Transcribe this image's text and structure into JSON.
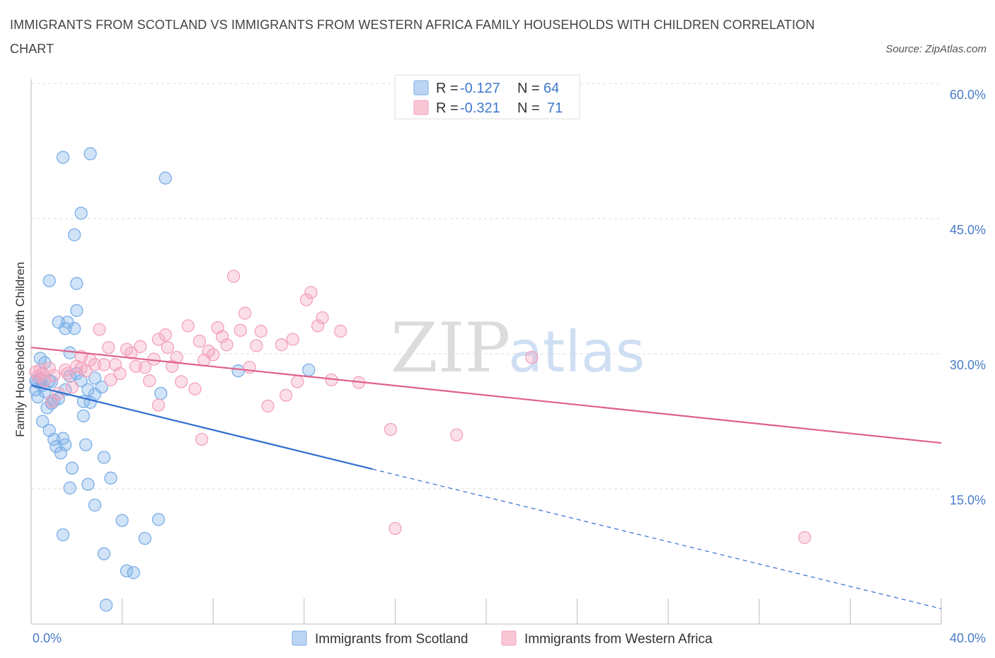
{
  "title": "IMMIGRANTS FROM SCOTLAND VS IMMIGRANTS FROM WESTERN AFRICA FAMILY HOUSEHOLDS WITH CHILDREN CORRELATION CHART",
  "source": "Source: ZipAtlas.com",
  "watermark": {
    "zip": "ZIP",
    "atlas": "atlas"
  },
  "legend": {
    "r_label": "R =",
    "n_label": "N =",
    "series": [
      {
        "r": "-0.127",
        "n": "64"
      },
      {
        "r": "-0.321",
        "n": "71"
      }
    ]
  },
  "chart_data": {
    "type": "scatter",
    "title": "IMMIGRANTS FROM SCOTLAND VS IMMIGRANTS FROM WESTERN AFRICA FAMILY HOUSEHOLDS WITH CHILDREN CORRELATION CHART",
    "xlabel": "",
    "ylabel": "Family Households with Children",
    "xlim": [
      0,
      40
    ],
    "ylim": [
      0,
      60
    ],
    "x_tick_labels": [
      "0.0%",
      "40.0%"
    ],
    "y_ticks": [
      15,
      30,
      45,
      60
    ],
    "y_tick_labels": [
      "15.0%",
      "30.0%",
      "45.0%",
      "60.0%"
    ],
    "grid": true,
    "legend_position": "top-center",
    "series": [
      {
        "name": "Immigrants from Scotland",
        "color": "#7aaee8",
        "line_color": "#2f6fcf",
        "r": -0.127,
        "n": 64,
        "trend": {
          "x0": 0,
          "y0": 26.5,
          "x1": 15,
          "y1": 17.2,
          "dash_to_x": 40,
          "dash_to_y": 1.7
        },
        "points": [
          [
            0.2,
            27.0
          ],
          [
            0.3,
            26.8
          ],
          [
            0.4,
            27.2
          ],
          [
            0.2,
            26.0
          ],
          [
            0.5,
            26.5
          ],
          [
            0.6,
            25.8
          ],
          [
            0.3,
            25.2
          ],
          [
            0.8,
            27.0
          ],
          [
            0.4,
            29.5
          ],
          [
            0.6,
            29.0
          ],
          [
            0.5,
            22.5
          ],
          [
            0.7,
            24.0
          ],
          [
            0.9,
            24.5
          ],
          [
            1.0,
            24.8
          ],
          [
            1.2,
            25.0
          ],
          [
            1.5,
            26.0
          ],
          [
            1.7,
            27.5
          ],
          [
            2.0,
            27.8
          ],
          [
            2.2,
            27.0
          ],
          [
            2.5,
            26.0
          ],
          [
            2.8,
            25.5
          ],
          [
            2.3,
            24.7
          ],
          [
            2.6,
            24.6
          ],
          [
            0.8,
            21.5
          ],
          [
            1.0,
            20.5
          ],
          [
            1.1,
            19.7
          ],
          [
            1.4,
            20.6
          ],
          [
            1.5,
            19.9
          ],
          [
            1.3,
            19.0
          ],
          [
            1.8,
            17.3
          ],
          [
            2.4,
            19.9
          ],
          [
            2.5,
            15.5
          ],
          [
            1.7,
            15.1
          ],
          [
            2.8,
            13.2
          ],
          [
            3.2,
            18.5
          ],
          [
            3.5,
            16.2
          ],
          [
            4.0,
            11.5
          ],
          [
            5.0,
            9.5
          ],
          [
            5.6,
            11.6
          ],
          [
            1.4,
            9.9
          ],
          [
            3.2,
            7.8
          ],
          [
            4.2,
            5.9
          ],
          [
            4.5,
            5.7
          ],
          [
            3.3,
            2.1
          ],
          [
            0.8,
            38.1
          ],
          [
            1.2,
            33.5
          ],
          [
            1.5,
            32.8
          ],
          [
            1.6,
            33.5
          ],
          [
            1.9,
            32.8
          ],
          [
            2.0,
            34.8
          ],
          [
            2.0,
            37.8
          ],
          [
            1.7,
            30.1
          ],
          [
            1.9,
            43.2
          ],
          [
            2.2,
            45.6
          ],
          [
            1.4,
            51.8
          ],
          [
            2.6,
            52.2
          ],
          [
            5.9,
            49.5
          ],
          [
            5.7,
            25.6
          ],
          [
            2.3,
            23.1
          ],
          [
            3.1,
            26.3
          ],
          [
            9.1,
            28.1
          ],
          [
            12.2,
            28.2
          ],
          [
            2.8,
            27.3
          ],
          [
            0.9,
            26.9
          ]
        ]
      },
      {
        "name": "Immigrants from Western Africa",
        "color": "#f3a2bd",
        "line_color": "#e0608e",
        "r": -0.321,
        "n": 71,
        "trend": {
          "x0": 0,
          "y0": 30.7,
          "x1": 40,
          "y1": 20.1
        },
        "points": [
          [
            0.2,
            28.0
          ],
          [
            0.3,
            27.5
          ],
          [
            0.4,
            28.2
          ],
          [
            0.5,
            27.8
          ],
          [
            0.6,
            27.0
          ],
          [
            0.8,
            28.4
          ],
          [
            1.0,
            27.6
          ],
          [
            1.2,
            25.6
          ],
          [
            1.5,
            28.2
          ],
          [
            1.6,
            27.8
          ],
          [
            1.8,
            26.3
          ],
          [
            2.0,
            28.6
          ],
          [
            2.2,
            29.7
          ],
          [
            2.4,
            28.1
          ],
          [
            2.6,
            29.3
          ],
          [
            2.8,
            28.8
          ],
          [
            3.0,
            32.7
          ],
          [
            3.2,
            28.8
          ],
          [
            3.4,
            30.7
          ],
          [
            3.5,
            27.1
          ],
          [
            3.7,
            28.8
          ],
          [
            3.9,
            27.8
          ],
          [
            4.2,
            30.5
          ],
          [
            4.4,
            30.1
          ],
          [
            4.6,
            28.6
          ],
          [
            4.8,
            30.8
          ],
          [
            5.0,
            28.5
          ],
          [
            5.2,
            27.0
          ],
          [
            5.4,
            29.4
          ],
          [
            5.6,
            31.6
          ],
          [
            5.9,
            32.1
          ],
          [
            6.0,
            30.7
          ],
          [
            6.2,
            28.6
          ],
          [
            6.4,
            29.6
          ],
          [
            6.6,
            26.9
          ],
          [
            6.9,
            33.1
          ],
          [
            7.2,
            26.1
          ],
          [
            7.4,
            31.4
          ],
          [
            7.6,
            29.3
          ],
          [
            7.8,
            30.3
          ],
          [
            8.0,
            29.9
          ],
          [
            8.2,
            32.9
          ],
          [
            8.4,
            31.9
          ],
          [
            8.6,
            31.0
          ],
          [
            8.9,
            38.6
          ],
          [
            9.2,
            32.6
          ],
          [
            9.4,
            34.5
          ],
          [
            9.6,
            28.5
          ],
          [
            9.9,
            30.9
          ],
          [
            10.1,
            32.5
          ],
          [
            10.4,
            24.2
          ],
          [
            11.0,
            31.0
          ],
          [
            11.2,
            25.4
          ],
          [
            11.5,
            31.6
          ],
          [
            11.7,
            26.9
          ],
          [
            12.1,
            36.0
          ],
          [
            12.3,
            36.8
          ],
          [
            12.6,
            33.1
          ],
          [
            12.8,
            34.0
          ],
          [
            13.2,
            27.1
          ],
          [
            13.6,
            32.5
          ],
          [
            14.4,
            26.8
          ],
          [
            15.8,
            21.6
          ],
          [
            18.7,
            21.0
          ],
          [
            16.0,
            10.6
          ],
          [
            34.0,
            9.6
          ],
          [
            22.0,
            29.6
          ],
          [
            7.5,
            20.5
          ],
          [
            5.6,
            24.3
          ],
          [
            0.9,
            24.7
          ],
          [
            2.2,
            28.4
          ]
        ]
      }
    ]
  },
  "bottom_legend": [
    "Immigrants from Scotland",
    "Immigrants from Western Africa"
  ]
}
